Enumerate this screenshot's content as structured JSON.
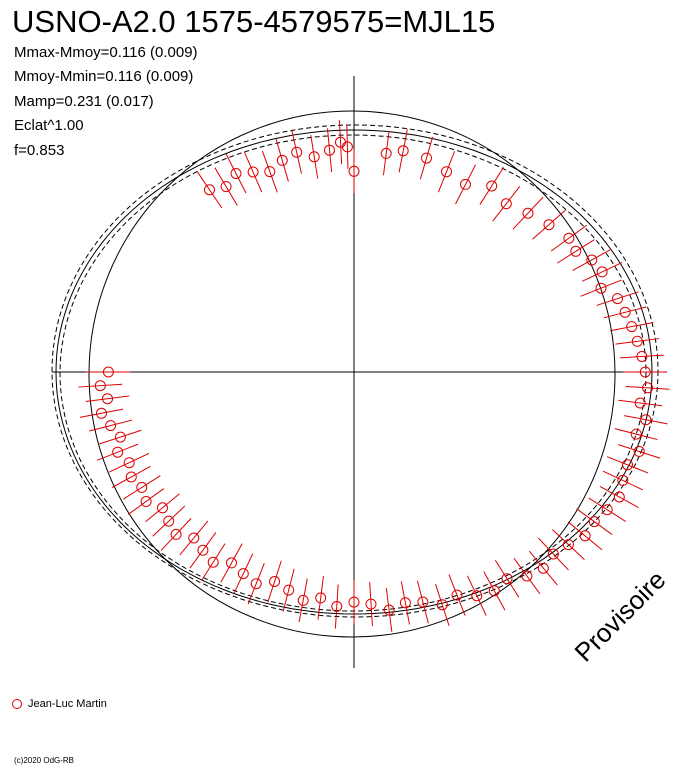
{
  "title": "USNO-A2.0 1575-4579575=MJL15",
  "stats": [
    "Mmax-Mmoy=0.116 (0.009)",
    "Mmoy-Mmin=0.116 (0.009)",
    "Mamp=0.231 (0.017)",
    "Eclat^1.00",
    "f=0.853"
  ],
  "legend_label": "Jean-Luc Martin",
  "watermark": "Provisoire",
  "copyright": "(c)2020 OdG-RB",
  "colors": {
    "points": "#dd0000",
    "lines": "#000000",
    "background": "#ffffff"
  },
  "chart_data": {
    "type": "scatter",
    "projection": "polar",
    "title": "USNO-A2.0 1575-4579575=MJL15",
    "series": [
      {
        "name": "Jean-Luc Martin",
        "marker": "open-circle",
        "error_bars": true,
        "points": [
          {
            "phase": 0.0,
            "r": 0.82
          },
          {
            "phase": 0.02,
            "r": 0.9
          },
          {
            "phase": 0.03,
            "r": 0.92
          },
          {
            "phase": 0.045,
            "r": 0.91
          },
          {
            "phase": 0.06,
            "r": 0.88
          },
          {
            "phase": 0.075,
            "r": 0.86
          },
          {
            "phase": 0.09,
            "r": 0.9
          },
          {
            "phase": 0.105,
            "r": 0.87
          },
          {
            "phase": 0.12,
            "r": 0.89
          },
          {
            "phase": 0.135,
            "r": 0.91
          },
          {
            "phase": 0.15,
            "r": 0.93
          },
          {
            "phase": 0.16,
            "r": 0.92
          },
          {
            "phase": 0.17,
            "r": 0.95
          },
          {
            "phase": 0.18,
            "r": 0.96
          },
          {
            "phase": 0.19,
            "r": 0.93
          },
          {
            "phase": 0.2,
            "r": 0.97
          },
          {
            "phase": 0.21,
            "r": 0.98
          },
          {
            "phase": 0.22,
            "r": 0.99
          },
          {
            "phase": 0.23,
            "r": 1.0
          },
          {
            "phase": 0.24,
            "r": 1.01
          },
          {
            "phase": 0.25,
            "r": 1.02
          },
          {
            "phase": 0.26,
            "r": 1.03
          },
          {
            "phase": 0.27,
            "r": 1.01
          },
          {
            "phase": 0.28,
            "r": 1.04
          },
          {
            "phase": 0.29,
            "r": 1.02
          },
          {
            "phase": 0.3,
            "r": 1.05
          },
          {
            "phase": 0.31,
            "r": 1.03
          },
          {
            "phase": 0.32,
            "r": 1.04
          },
          {
            "phase": 0.33,
            "r": 1.06
          },
          {
            "phase": 0.34,
            "r": 1.05
          },
          {
            "phase": 0.35,
            "r": 1.04
          },
          {
            "phase": 0.36,
            "r": 1.05
          },
          {
            "phase": 0.37,
            "r": 1.03
          },
          {
            "phase": 0.38,
            "r": 1.02
          },
          {
            "phase": 0.39,
            "r": 1.04
          },
          {
            "phase": 0.4,
            "r": 1.03
          },
          {
            "phase": 0.41,
            "r": 1.0
          },
          {
            "phase": 0.42,
            "r": 1.02
          },
          {
            "phase": 0.43,
            "r": 1.01
          },
          {
            "phase": 0.44,
            "r": 0.98
          },
          {
            "phase": 0.45,
            "r": 1.0
          },
          {
            "phase": 0.46,
            "r": 0.97
          },
          {
            "phase": 0.47,
            "r": 0.96
          },
          {
            "phase": 0.48,
            "r": 0.98
          },
          {
            "phase": 0.49,
            "r": 0.95
          },
          {
            "phase": 0.5,
            "r": 0.94
          },
          {
            "phase": 0.51,
            "r": 0.96
          },
          {
            "phase": 0.52,
            "r": 0.93
          },
          {
            "phase": 0.53,
            "r": 0.95
          },
          {
            "phase": 0.54,
            "r": 0.92
          },
          {
            "phase": 0.55,
            "r": 0.9
          },
          {
            "phase": 0.56,
            "r": 0.93
          },
          {
            "phase": 0.57,
            "r": 0.91
          },
          {
            "phase": 0.58,
            "r": 0.89
          },
          {
            "phase": 0.59,
            "r": 0.92
          },
          {
            "phase": 0.6,
            "r": 0.9
          },
          {
            "phase": 0.61,
            "r": 0.88
          },
          {
            "phase": 0.62,
            "r": 0.91
          },
          {
            "phase": 0.63,
            "r": 0.89
          },
          {
            "phase": 0.64,
            "r": 0.87
          },
          {
            "phase": 0.65,
            "r": 0.9
          },
          {
            "phase": 0.66,
            "r": 0.88
          },
          {
            "phase": 0.67,
            "r": 0.89
          },
          {
            "phase": 0.68,
            "r": 0.87
          },
          {
            "phase": 0.69,
            "r": 0.89
          },
          {
            "phase": 0.7,
            "r": 0.86
          },
          {
            "phase": 0.71,
            "r": 0.88
          },
          {
            "phase": 0.72,
            "r": 0.9
          },
          {
            "phase": 0.73,
            "r": 0.87
          },
          {
            "phase": 0.74,
            "r": 0.89
          },
          {
            "phase": 0.75,
            "r": 0.86
          },
          {
            "phase": 0.905,
            "r": 0.9
          },
          {
            "phase": 0.915,
            "r": 0.88
          },
          {
            "phase": 0.925,
            "r": 0.91
          },
          {
            "phase": 0.935,
            "r": 0.89
          },
          {
            "phase": 0.945,
            "r": 0.87
          },
          {
            "phase": 0.955,
            "r": 0.9
          },
          {
            "phase": 0.965,
            "r": 0.92
          },
          {
            "phase": 0.975,
            "r": 0.89
          },
          {
            "phase": 0.985,
            "r": 0.91
          },
          {
            "phase": 0.992,
            "r": 0.94
          },
          {
            "phase": 0.996,
            "r": 0.92
          }
        ]
      }
    ],
    "model_curves": [
      "fit",
      "fit-upper",
      "fit-lower"
    ],
    "reference_circle": true,
    "grid": false,
    "legend_position": "bottom-left"
  }
}
